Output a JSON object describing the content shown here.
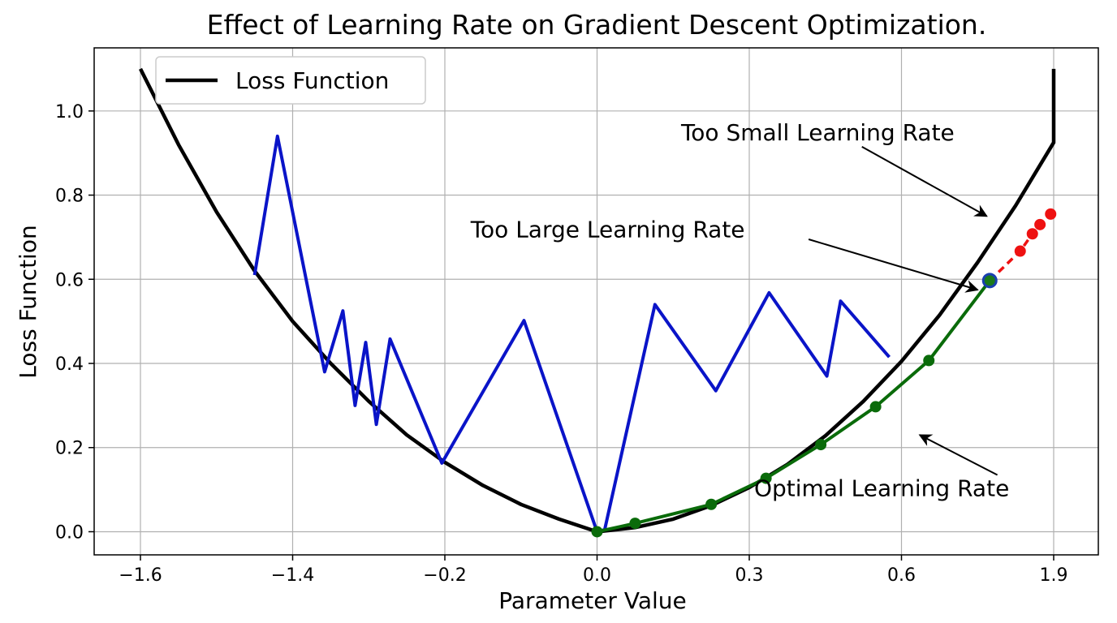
{
  "chart_data": {
    "type": "line",
    "title": "Effect of Learning Rate on Gradient Descent Optimization.",
    "xlabel": "Parameter Value",
    "ylabel": "Loss Function",
    "ylim": [
      -0.055,
      1.15
    ],
    "grid": true,
    "legend_placement": "top-left",
    "x_tick_labels": [
      "−1.6",
      "−1.4",
      "−0.2",
      "0.0",
      "0.3",
      "0.6",
      "1.9"
    ],
    "y_ticks": [
      0.0,
      0.2,
      0.4,
      0.6,
      0.8,
      1.0
    ],
    "y_tick_labels": [
      "0.0",
      "0.2",
      "0.4",
      "0.6",
      "0.8",
      "1.0"
    ],
    "x_axis_note": "Tick labels are spaced evenly; the axis is non-uniform as printed. Point x values are given in tick-index units (0 = −1.6 tick, 6 = 1.9 tick).",
    "series": [
      {
        "name": "Loss Function",
        "role": "loss",
        "color": "#000000",
        "points": [
          [
            0.0,
            1.1
          ],
          [
            0.25,
            0.92
          ],
          [
            0.5,
            0.76
          ],
          [
            0.75,
            0.62
          ],
          [
            1.0,
            0.5
          ],
          [
            1.25,
            0.4
          ],
          [
            1.5,
            0.31
          ],
          [
            1.75,
            0.23
          ],
          [
            2.0,
            0.165
          ],
          [
            2.25,
            0.11
          ],
          [
            2.5,
            0.065
          ],
          [
            2.75,
            0.03
          ],
          [
            3.0,
            0.0
          ],
          [
            3.25,
            0.01
          ],
          [
            3.5,
            0.03
          ],
          [
            3.75,
            0.062
          ],
          [
            4.0,
            0.105
          ],
          [
            4.25,
            0.16
          ],
          [
            4.5,
            0.228
          ],
          [
            4.75,
            0.31
          ],
          [
            5.0,
            0.405
          ],
          [
            5.25,
            0.515
          ],
          [
            5.5,
            0.64
          ],
          [
            5.75,
            0.775
          ],
          [
            6.0,
            0.925
          ],
          [
            6.0,
            1.1
          ]
        ]
      },
      {
        "role": "too-large",
        "color": "#0a14c8",
        "points": [
          [
            0.75,
            0.61
          ],
          [
            0.9,
            0.94
          ],
          [
            1.21,
            0.38
          ],
          [
            1.33,
            0.525
          ],
          [
            1.41,
            0.3
          ],
          [
            1.48,
            0.45
          ],
          [
            1.55,
            0.255
          ],
          [
            1.64,
            0.458
          ],
          [
            1.98,
            0.163
          ],
          [
            2.52,
            0.502
          ],
          [
            3.0,
            0.0
          ],
          [
            3.05,
            0.005
          ],
          [
            3.38,
            0.54
          ],
          [
            3.78,
            0.335
          ],
          [
            4.13,
            0.568
          ],
          [
            4.51,
            0.37
          ],
          [
            4.6,
            0.548
          ],
          [
            4.92,
            0.415
          ]
        ]
      },
      {
        "role": "optimal",
        "color": "#0a6b0a",
        "points": [
          [
            3.0,
            0.0
          ],
          [
            3.25,
            0.02
          ],
          [
            3.75,
            0.065
          ],
          [
            4.11,
            0.127
          ],
          [
            4.47,
            0.207
          ],
          [
            4.83,
            0.297
          ],
          [
            5.18,
            0.407
          ],
          [
            5.58,
            0.597
          ]
        ]
      },
      {
        "role": "too-small",
        "color": "#ee1111",
        "points": [
          [
            5.58,
            0.597
          ],
          [
            5.78,
            0.667
          ],
          [
            5.86,
            0.708
          ],
          [
            5.91,
            0.73
          ],
          [
            5.98,
            0.755
          ]
        ]
      }
    ],
    "start_point": {
      "x": 5.58,
      "y": 0.597,
      "color": "#1a3fb0"
    },
    "annotations": [
      {
        "text": "Too Small Learning Rate",
        "role": "small",
        "label": [
          4.45,
          0.93
        ],
        "target": [
          5.56,
          0.75
        ],
        "from": [
          4.74,
          0.915
        ]
      },
      {
        "text": "Too Large Learning Rate",
        "role": "large",
        "label": [
          3.07,
          0.7
        ],
        "target": [
          5.5,
          0.575
        ],
        "from": [
          4.39,
          0.695
        ]
      },
      {
        "text": "Optimal Learning Rate",
        "role": "optimal",
        "label": [
          4.87,
          0.085
        ],
        "target": [
          5.12,
          0.23
        ],
        "from": [
          5.63,
          0.135
        ]
      }
    ]
  }
}
